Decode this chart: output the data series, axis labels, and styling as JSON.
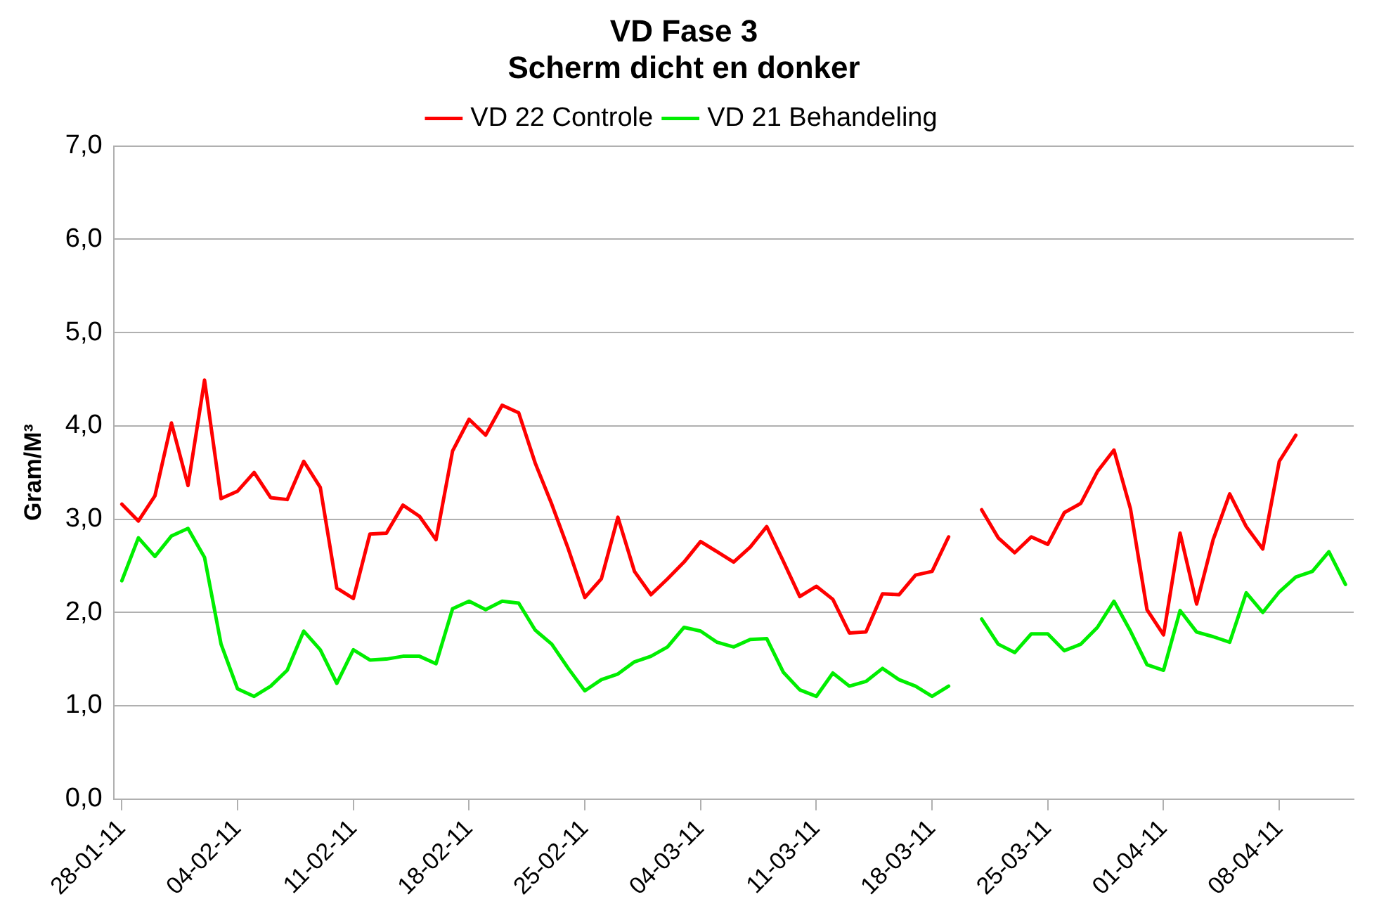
{
  "chart_data": {
    "type": "line",
    "title": "VD Fase 3",
    "subtitle": "Scherm dicht en donker",
    "ylabel": "Gram/M³",
    "x": [
      "--01-28",
      "--01-29",
      "--01-30",
      "--01-31",
      "--02-01",
      "--02-02",
      "--02-03",
      "--02-04",
      "--02-05",
      "--02-06",
      "--02-07",
      "--02-08",
      "--02-09",
      "--02-10",
      "--02-11",
      "--02-12",
      "--02-13",
      "--02-14",
      "--02-15",
      "--02-16",
      "--02-17",
      "--02-18",
      "--02-19",
      "--02-20",
      "--02-21",
      "--02-22",
      "--02-23",
      "--02-24",
      "--02-25",
      "--02-26",
      "--02-27",
      "--02-28",
      "--03-01",
      "--03-02",
      "--03-03",
      "--03-04",
      "--03-05",
      "--03-06",
      "--03-07",
      "--03-08",
      "--03-09",
      "--03-10",
      "--03-11",
      "--03-12",
      "--03-13",
      "--03-14",
      "--03-15",
      "--03-16",
      "--03-17",
      "--03-18",
      "--03-19",
      "--03-20",
      "--03-21",
      "--03-22",
      "--03-23",
      "--03-24",
      "--03-25",
      "--03-26",
      "--03-27",
      "--03-28",
      "--03-29",
      "--03-30",
      "--03-31",
      "--04-01",
      "--04-02",
      "--04-03",
      "--04-04",
      "--04-05",
      "--04-06",
      "--04-07",
      "--04-08",
      "--04-09",
      "--04-10",
      "--04-11",
      "--04-12"
    ],
    "series": [
      {
        "name": "VD 22 Controle",
        "color": "#ff0000",
        "values": [
          3.16,
          2.98,
          3.25,
          4.03,
          3.36,
          4.49,
          3.22,
          3.3,
          3.5,
          3.23,
          3.21,
          3.62,
          3.34,
          2.26,
          2.15,
          2.84,
          2.85,
          3.15,
          3.03,
          2.78,
          3.73,
          4.07,
          3.9,
          4.22,
          4.14,
          3.6,
          3.16,
          2.68,
          2.16,
          2.36,
          3.02,
          2.44,
          2.19,
          2.36,
          2.54,
          2.76,
          2.65,
          2.54,
          2.7,
          2.92,
          2.55,
          2.17,
          2.28,
          2.14,
          1.78,
          1.79,
          2.2,
          2.19,
          2.4,
          2.44,
          2.81,
          null,
          3.1,
          2.8,
          2.64,
          2.81,
          2.73,
          3.07,
          3.17,
          3.51,
          3.74,
          3.11,
          2.03,
          1.76,
          2.85,
          2.09,
          2.78,
          3.27,
          2.92,
          2.68,
          3.62,
          3.9,
          null,
          null,
          null
        ]
      },
      {
        "name": "VD 21 Behandeling",
        "color": "#00ee00",
        "values": [
          2.34,
          2.8,
          2.6,
          2.82,
          2.9,
          2.59,
          1.66,
          1.18,
          1.1,
          1.21,
          1.38,
          1.8,
          1.6,
          1.24,
          1.6,
          1.49,
          1.5,
          1.53,
          1.53,
          1.45,
          2.04,
          2.12,
          2.03,
          2.12,
          2.1,
          1.81,
          1.66,
          1.4,
          1.16,
          1.28,
          1.34,
          1.47,
          1.53,
          1.63,
          1.84,
          1.8,
          1.68,
          1.63,
          1.71,
          1.72,
          1.36,
          1.17,
          1.1,
          1.35,
          1.21,
          1.26,
          1.4,
          1.28,
          1.21,
          1.1,
          1.21,
          null,
          1.93,
          1.66,
          1.57,
          1.77,
          1.77,
          1.59,
          1.66,
          1.84,
          2.12,
          1.8,
          1.44,
          1.38,
          2.02,
          1.79,
          1.74,
          1.68,
          2.21,
          2.0,
          2.22,
          2.38,
          2.44,
          2.65,
          2.3
        ]
      }
    ],
    "xlim": [
      "--01-27T12:00",
      "--04-12T12:00"
    ],
    "xticks": [
      {
        "value": "--01-28",
        "label": "28-01-11"
      },
      {
        "value": "--02-04",
        "label": "04-02-11"
      },
      {
        "value": "--02-11",
        "label": "11-02-11"
      },
      {
        "value": "--02-18",
        "label": "18-02-11"
      },
      {
        "value": "--02-25",
        "label": "25-02-11"
      },
      {
        "value": "--03-04",
        "label": "04-03-11"
      },
      {
        "value": "--03-11",
        "label": "11-03-11"
      },
      {
        "value": "--03-18",
        "label": "18-03-11"
      },
      {
        "value": "--03-25",
        "label": "25-03-11"
      },
      {
        "value": "--04-01",
        "label": "01-04-11"
      },
      {
        "value": "--04-08",
        "label": "08-04-11"
      }
    ],
    "ylim": [
      0,
      7
    ],
    "yticks": [
      {
        "value": 0,
        "label": "0,0"
      },
      {
        "value": 1,
        "label": "1,0"
      },
      {
        "value": 2,
        "label": "2,0"
      },
      {
        "value": 3,
        "label": "3,0"
      },
      {
        "value": 4,
        "label": "4,0"
      },
      {
        "value": 5,
        "label": "5,0"
      },
      {
        "value": 6,
        "label": "6,0"
      },
      {
        "value": 7,
        "label": "7,0"
      }
    ],
    "grid": "y",
    "legend": "top",
    "marker": "none",
    "line_style": "solid"
  }
}
